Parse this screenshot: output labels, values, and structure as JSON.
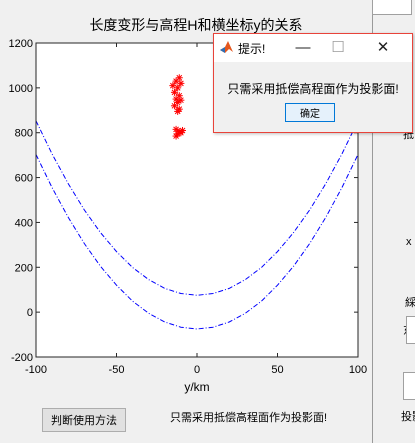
{
  "chart_data": {
    "type": "scatter",
    "title": "长度变形与高程H和横坐标y的关系",
    "xlabel": "y/km",
    "ylabel": "",
    "xlim": [
      -100,
      100
    ],
    "ylim": [
      -200,
      1200
    ],
    "xticks": [
      "-100",
      "-50",
      "0",
      "50",
      "100"
    ],
    "yticks": [
      "-200",
      "0",
      "200",
      "400",
      "600",
      "800",
      "1000",
      "1200"
    ],
    "grid": false,
    "series": [
      {
        "style": "red star markers",
        "color": "#ff0000",
        "points": [
          [
            -13,
            1030
          ],
          [
            -11,
            1045
          ],
          [
            -15,
            1010
          ],
          [
            -12,
            1000
          ],
          [
            -10,
            1020
          ],
          [
            -14,
            980
          ],
          [
            -11,
            965
          ],
          [
            -13,
            950
          ],
          [
            -12,
            935
          ],
          [
            -10,
            945
          ],
          [
            -14,
            920
          ],
          [
            -11,
            905
          ],
          [
            -12,
            895
          ],
          [
            -13,
            815
          ],
          [
            -11,
            805
          ],
          [
            -9,
            810
          ],
          [
            -12,
            795
          ],
          [
            -13,
            785
          ],
          [
            -10,
            800
          ]
        ]
      },
      {
        "style": "blue dash-dot curve (upper)",
        "color": "#0000ff",
        "curve": "75 + 0.0778*y^2",
        "x": [
          -100,
          -90,
          -80,
          -70,
          -60,
          -50,
          -40,
          -30,
          -20,
          -10,
          0,
          10,
          20,
          30,
          40,
          50,
          60,
          70,
          80,
          90,
          100
        ],
        "y": [
          853,
          705,
          573,
          456,
          355,
          270,
          199,
          145,
          106,
          83,
          75,
          83,
          106,
          145,
          199,
          270,
          355,
          456,
          573,
          705,
          853
        ]
      },
      {
        "style": "blue dash-dot curve (lower)",
        "color": "#0000ff",
        "curve": "-75 + 0.0778*y^2",
        "x": [
          -100,
          -90,
          -80,
          -70,
          -60,
          -50,
          -40,
          -30,
          -20,
          -10,
          0,
          10,
          20,
          30,
          40,
          50,
          60,
          70,
          80,
          90,
          100
        ],
        "y": [
          703,
          555,
          423,
          306,
          205,
          120,
          49,
          -5,
          -44,
          -67,
          -75,
          -67,
          -44,
          -5,
          49,
          120,
          205,
          306,
          423,
          555,
          703
        ]
      }
    ]
  },
  "controls": {
    "method_button": "判断使用方法",
    "status_text": "只需采用抵偿高程面作为投影面!"
  },
  "dialog": {
    "title": "提示!",
    "message": "只需采用抵偿高程面作为投影面!",
    "ok_label": "确定",
    "icon": "matlab-icon",
    "minimize_glyph": "—",
    "maximize_glyph": "☐",
    "close_glyph": "✕"
  },
  "right_panel": {
    "labels": [
      "抵",
      "x",
      "綵",
      "东",
      "投影"
    ]
  }
}
